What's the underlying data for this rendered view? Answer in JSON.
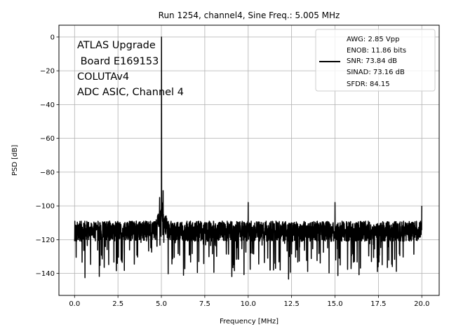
{
  "chart_data": {
    "type": "line",
    "title": "Run 1254, channel4, Sine Freq.: 5.005 MHz",
    "xlabel": "Frequency [MHz]",
    "ylabel": "PSD [dB]",
    "xlim": [
      -0.9,
      21.0
    ],
    "ylim": [
      -153,
      7
    ],
    "xticks": [
      0.0,
      2.5,
      5.0,
      7.5,
      10.0,
      12.5,
      15.0,
      17.5,
      20.0
    ],
    "xtick_labels": [
      "0.0",
      "2.5",
      "5.0",
      "7.5",
      "10.0",
      "12.5",
      "15.0",
      "17.5",
      "20.0"
    ],
    "yticks": [
      0,
      -20,
      -40,
      -60,
      -80,
      -100,
      -120,
      -140
    ],
    "ytick_labels": [
      "0",
      "−20",
      "−40",
      "−60",
      "−80",
      "−100",
      "−120",
      "−140"
    ],
    "grid": true,
    "line_color": "#000000",
    "noise_floor": {
      "median": -115,
      "min": -146,
      "max": -103
    },
    "series": [
      {
        "x_range": [
          0.0,
          20.0
        ],
        "peaks": [
          {
            "x": 5.005,
            "y": 0
          },
          {
            "x": 5.1,
            "y": -91
          },
          {
            "x": 4.9,
            "y": -95
          },
          {
            "x": 10.0,
            "y": -98
          },
          {
            "x": 15.0,
            "y": -98
          },
          {
            "x": 20.0,
            "y": -100
          }
        ]
      }
    ],
    "annotation": {
      "lines": [
        "ATLAS Upgrade",
        " Board E169153",
        "COLUTAv4",
        "ADC ASIC, Channel 4"
      ],
      "placement": "top-left"
    },
    "legend": {
      "placement": "top-right",
      "lines": [
        "AWG: 2.85 Vpp",
        "ENOB: 11.86 bits",
        "SNR: 73.84 dB",
        "SINAD: 73.16 dB",
        "SFDR: 84.15"
      ]
    }
  }
}
